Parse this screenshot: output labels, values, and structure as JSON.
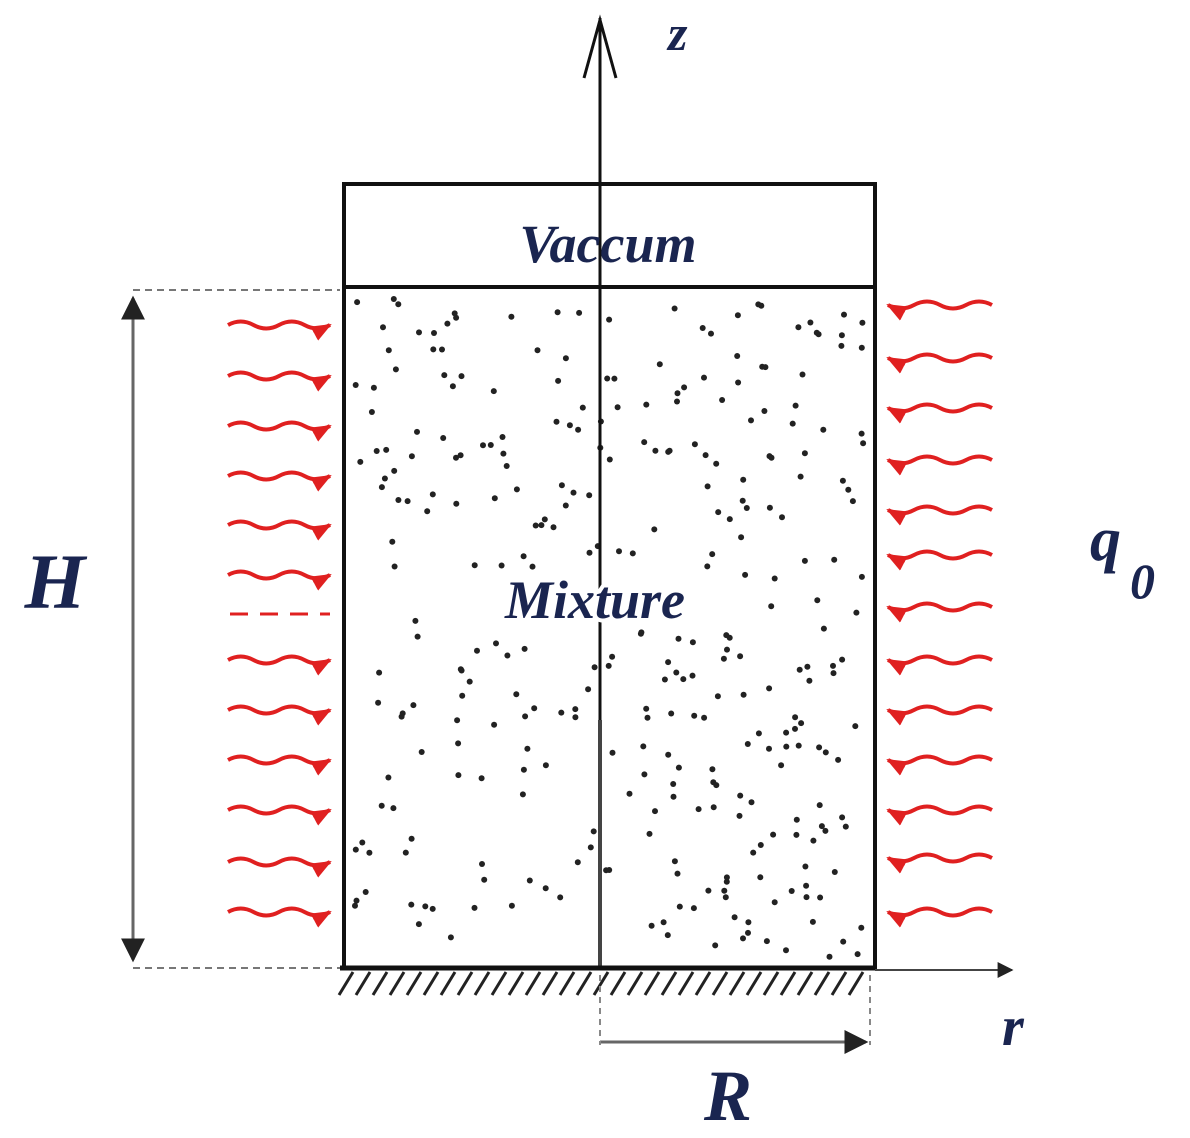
{
  "labels": {
    "z_axis": "z",
    "top_region": "Vaccum",
    "main_region": "Mixture",
    "height": "H",
    "heat_flux": "q",
    "heat_flux_subscript": "0",
    "r_axis": "r",
    "radius": "R"
  }
}
